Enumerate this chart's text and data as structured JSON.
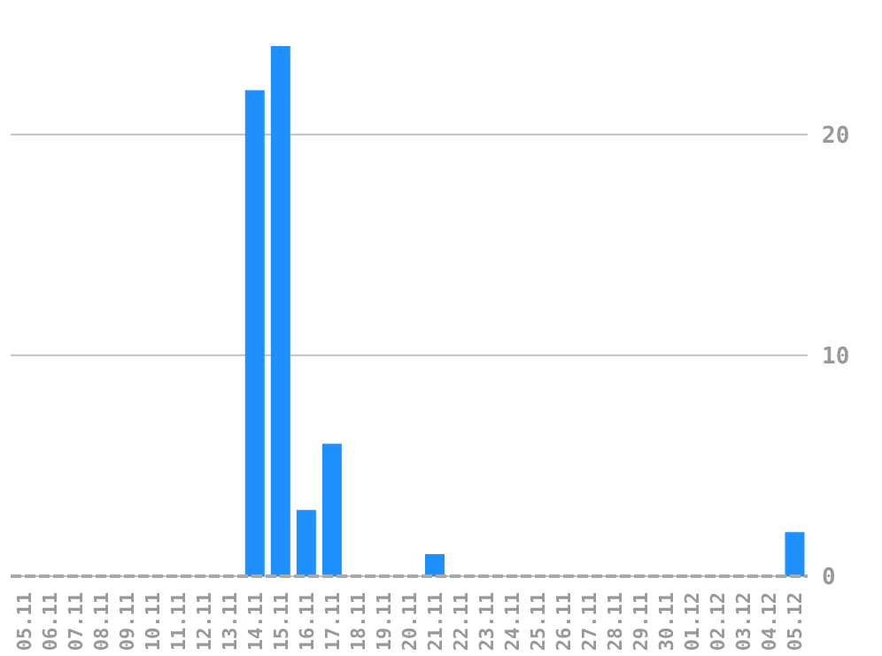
{
  "chart_data": {
    "type": "bar",
    "categories": [
      "05.11",
      "06.11",
      "07.11",
      "08.11",
      "09.11",
      "10.11",
      "11.11",
      "12.11",
      "13.11",
      "14.11",
      "15.11",
      "16.11",
      "17.11",
      "18.11",
      "19.11",
      "20.11",
      "21.11",
      "22.11",
      "23.11",
      "24.11",
      "25.11",
      "26.11",
      "27.11",
      "28.11",
      "29.11",
      "30.11",
      "01.12",
      "02.12",
      "03.12",
      "04.12",
      "05.12"
    ],
    "values": [
      0,
      0,
      0,
      0,
      0,
      0,
      0,
      0,
      0,
      22,
      24,
      3,
      6,
      0,
      0,
      0,
      1,
      0,
      0,
      0,
      0,
      0,
      0,
      0,
      0,
      0,
      0,
      0,
      0,
      0,
      2
    ],
    "color": "#1e90ff",
    "ylim": [
      0,
      24
    ],
    "yticks": [
      0,
      10,
      20
    ],
    "grid": "y"
  }
}
